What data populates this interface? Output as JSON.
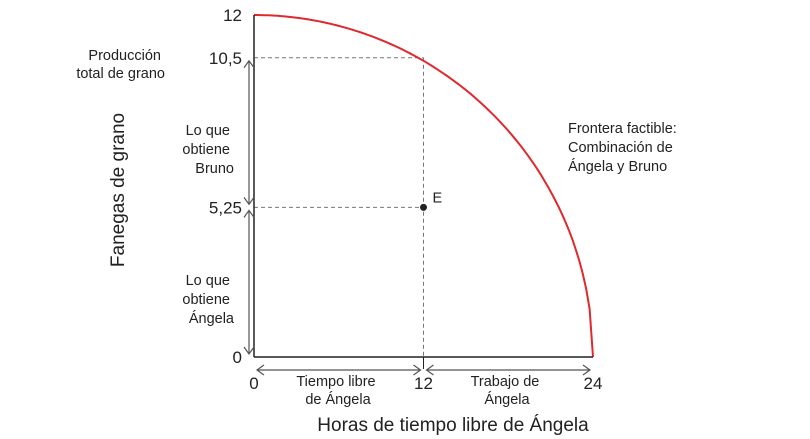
{
  "chart_data": {
    "type": "line",
    "xlabel": "Horas de tiempo libre de Ángela",
    "ylabel": "Fanegas de grano",
    "xlim": [
      0,
      24
    ],
    "ylim": [
      0,
      12
    ],
    "x_ticks": [
      "0",
      "12",
      "24"
    ],
    "y_ticks": [
      "12",
      "10,5",
      "5,25",
      "0"
    ],
    "series": [
      {
        "name": "Frontera factible: Combinación de Ángela y Bruno",
        "points": [
          [
            0,
            12
          ],
          [
            4,
            11.8
          ],
          [
            8,
            11.35
          ],
          [
            12,
            10.5
          ],
          [
            16,
            9.0
          ],
          [
            18,
            7.8
          ],
          [
            20,
            6.0
          ],
          [
            22,
            3.6
          ],
          [
            24,
            0
          ]
        ]
      }
    ],
    "frontier_label": [
      "Frontera factible:",
      "Combinación de",
      "Ángela y Bruno"
    ],
    "point": {
      "label": "E",
      "x": 12,
      "y": 5.25
    },
    "annotations": {
      "total_grain": [
        "Producción",
        "total de grano"
      ],
      "bruno_share": [
        "Lo que",
        "obtiene",
        "Bruno"
      ],
      "angela_share": [
        "Lo que",
        "obtiene",
        "Ángela"
      ],
      "free_time": [
        "Tiempo libre",
        "de Ángela"
      ],
      "work": [
        "Trabajo de",
        "Ángela"
      ]
    },
    "colors": {
      "frontier": "#e0292e",
      "axis": "#222222",
      "guides": "#777777",
      "arrows": "#555555"
    },
    "grid": false
  }
}
